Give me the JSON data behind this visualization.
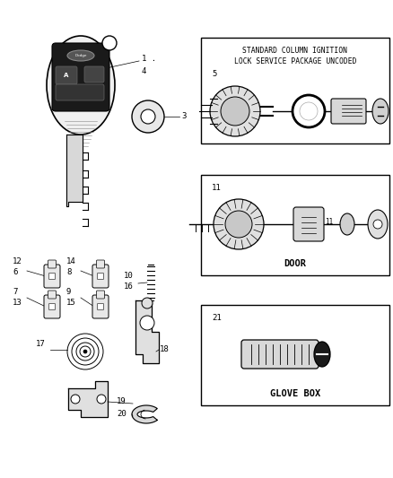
{
  "bg_color": "#ffffff",
  "fig_width": 4.38,
  "fig_height": 5.33,
  "dpi": 100,
  "box1_text_line1": "STANDARD COLUMN IGNITION",
  "box1_text_line2": "LOCK SERVICE PACKAGE UNCODED",
  "box2_text": "DOOR",
  "box3_text": "GLOVE BOX",
  "font_size_label": 6.5,
  "font_size_box_label": 7.5
}
